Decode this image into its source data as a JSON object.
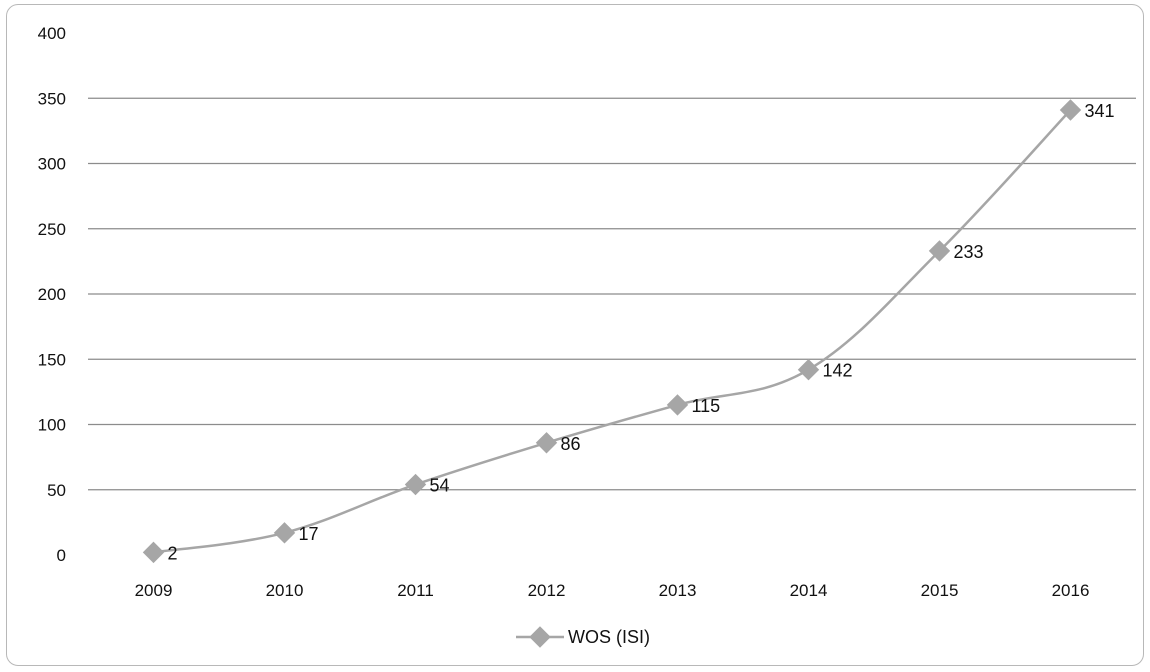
{
  "chart_data": {
    "type": "line",
    "categories": [
      "2009",
      "2010",
      "2011",
      "2012",
      "2013",
      "2014",
      "2015",
      "2016"
    ],
    "series": [
      {
        "name": "WOS (ISI)",
        "values": [
          2,
          17,
          54,
          86,
          115,
          142,
          233,
          341
        ],
        "color": "#a6a6a6",
        "marker": "diamond"
      }
    ],
    "y_ticks": [
      "0",
      "50",
      "100",
      "150",
      "200",
      "250",
      "300",
      "350",
      "400"
    ],
    "ylim": [
      0,
      400
    ],
    "grid": "horizontal",
    "data_labels": [
      "2",
      "17",
      "54",
      "86",
      "115",
      "142",
      "233",
      "341"
    ],
    "legend": {
      "position": "bottom",
      "entries": [
        "WOS (ISI)"
      ]
    }
  }
}
